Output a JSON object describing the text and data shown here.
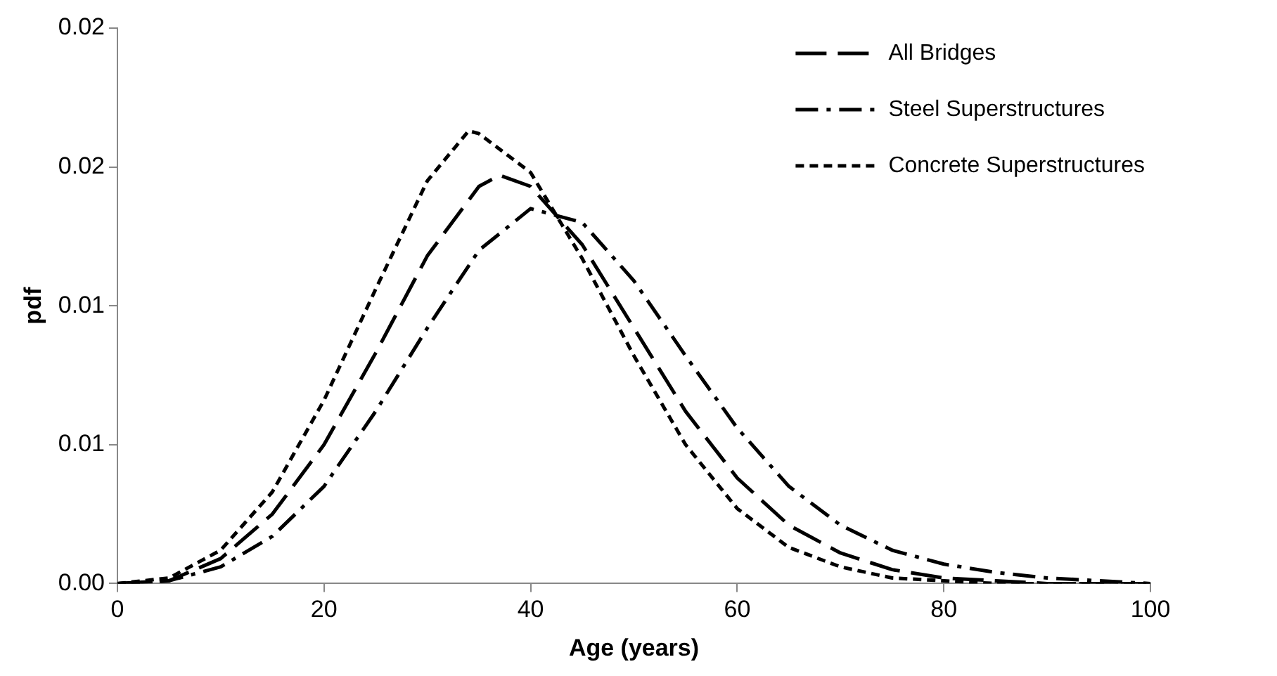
{
  "chart_data": {
    "type": "line",
    "xlabel": "Age (years)",
    "ylabel": "pdf",
    "xlim": [
      0,
      100
    ],
    "xticks": [
      0,
      20,
      40,
      60,
      80,
      100
    ],
    "ylim": [
      0,
      0.02
    ],
    "yticks": [
      {
        "value": 0,
        "label": "0.00"
      },
      {
        "value": 0.005,
        "label": "0.01"
      },
      {
        "value": 0.01,
        "label": "0.01"
      },
      {
        "value": 0.015,
        "label": "0.02"
      },
      {
        "value": 0.02,
        "label": "0.02"
      }
    ],
    "grid": false,
    "legend": "top right",
    "marker": "none",
    "series": [
      {
        "name": "All Bridges",
        "color": "#000000",
        "line_style": "dashed",
        "x": [
          0,
          5,
          10,
          15,
          20,
          25,
          30,
          35,
          37,
          40,
          45,
          50,
          55,
          60,
          65,
          70,
          75,
          80,
          85,
          90,
          100
        ],
        "values": [
          0,
          0.0001,
          0.0009,
          0.0025,
          0.005,
          0.0083,
          0.0118,
          0.0143,
          0.0147,
          0.0143,
          0.0122,
          0.0092,
          0.0062,
          0.0038,
          0.0021,
          0.0011,
          0.0005,
          0.0002,
          0.0001,
          0,
          0
        ]
      },
      {
        "name": "Steel Superstructures",
        "color": "#000000",
        "line_style": "dashdot",
        "x": [
          0,
          5,
          10,
          15,
          20,
          25,
          30,
          35,
          40,
          45,
          50,
          55,
          60,
          65,
          70,
          75,
          80,
          85,
          90,
          95,
          100
        ],
        "values": [
          0,
          0.0001,
          0.0006,
          0.0017,
          0.0035,
          0.0062,
          0.0092,
          0.012,
          0.0135,
          0.013,
          0.0109,
          0.0082,
          0.0056,
          0.0035,
          0.0021,
          0.0012,
          0.0007,
          0.0004,
          0.0002,
          0.0001,
          0
        ]
      },
      {
        "name": "Concrete Superstructures",
        "color": "#000000",
        "line_style": "dotted",
        "x": [
          0,
          5,
          10,
          15,
          20,
          25,
          30,
          34,
          35,
          40,
          45,
          50,
          55,
          60,
          65,
          70,
          75,
          80,
          85,
          90,
          100
        ],
        "values": [
          0,
          0.0002,
          0.0012,
          0.0033,
          0.0066,
          0.0106,
          0.0145,
          0.0163,
          0.0162,
          0.0148,
          0.0117,
          0.0082,
          0.005,
          0.0027,
          0.0013,
          0.0006,
          0.0002,
          0.0001,
          0,
          0,
          0
        ]
      }
    ]
  }
}
